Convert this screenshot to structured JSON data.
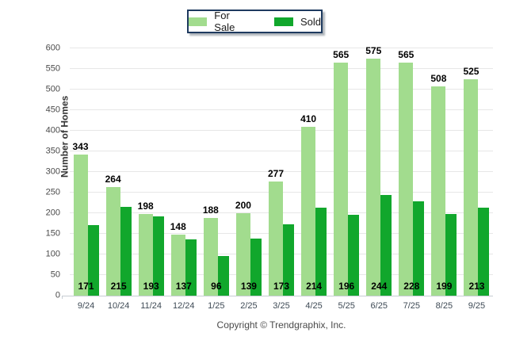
{
  "chart_data": {
    "type": "bar",
    "title": "",
    "categories": [
      "9/24",
      "10/24",
      "11/24",
      "12/24",
      "1/25",
      "2/25",
      "3/25",
      "4/25",
      "5/25",
      "6/25",
      "7/25",
      "8/25",
      "9/25"
    ],
    "series": [
      {
        "name": "For Sale",
        "color": "#a2dc8e",
        "values": [
          343,
          264,
          198,
          148,
          188,
          200,
          277,
          410,
          565,
          575,
          565,
          508,
          525
        ]
      },
      {
        "name": "Sold",
        "color": "#11a72c",
        "values": [
          171,
          215,
          193,
          137,
          96,
          139,
          173,
          214,
          196,
          244,
          228,
          199,
          213
        ]
      }
    ],
    "ylabel": "Number of Homes",
    "ylim": [
      0,
      600
    ],
    "ytick_step": 50,
    "grid": true,
    "legend_position": "top-center",
    "value_labels": {
      "for_sale": "above bar",
      "sold": "at bar base"
    }
  },
  "legend": {
    "border_color": "#1e3a5f"
  },
  "footer": {
    "copyright": "Copyright © Trendgraphix, Inc."
  }
}
